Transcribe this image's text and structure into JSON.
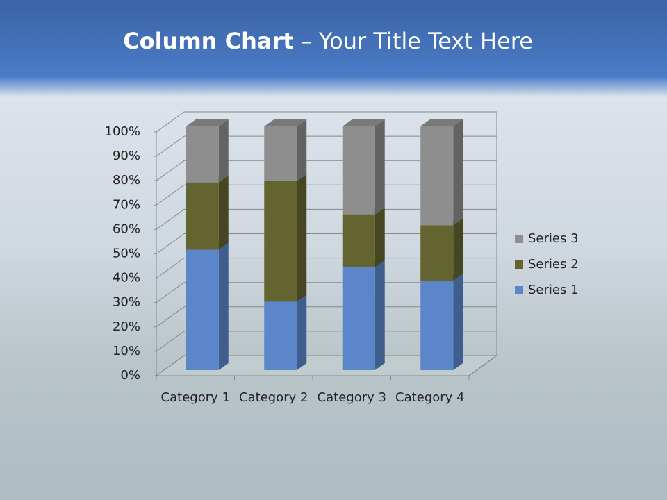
{
  "title": {
    "bold": "Column Chart",
    "rest": "– Your Title Text Here"
  },
  "chart_data": {
    "type": "bar",
    "stacked": true,
    "categories": [
      "Category 1",
      "Category 2",
      "Category 3",
      "Category 4"
    ],
    "series": [
      {
        "name": "Series 1",
        "color": "#5b86c9",
        "values": [
          49.4,
          28.1,
          42.2,
          36.6
        ]
      },
      {
        "name": "Series 2",
        "color": "#646430",
        "values": [
          27.6,
          49.4,
          21.7,
          22.8
        ]
      },
      {
        "name": "Series 3",
        "color": "#8e8e8e",
        "values": [
          23.0,
          22.5,
          36.1,
          40.7
        ]
      }
    ],
    "ylim": [
      0,
      100
    ],
    "yticks": [
      {
        "value": 0,
        "label": "0%"
      },
      {
        "value": 10,
        "label": "10%"
      },
      {
        "value": 20,
        "label": "20%"
      },
      {
        "value": 30,
        "label": "30%"
      },
      {
        "value": 40,
        "label": "40%"
      },
      {
        "value": 50,
        "label": "50%"
      },
      {
        "value": 60,
        "label": "60%"
      },
      {
        "value": 70,
        "label": "70%"
      },
      {
        "value": 80,
        "label": "80%"
      },
      {
        "value": 90,
        "label": "90%"
      },
      {
        "value": 100,
        "label": "100%"
      }
    ],
    "grid": true,
    "legend": "right"
  }
}
